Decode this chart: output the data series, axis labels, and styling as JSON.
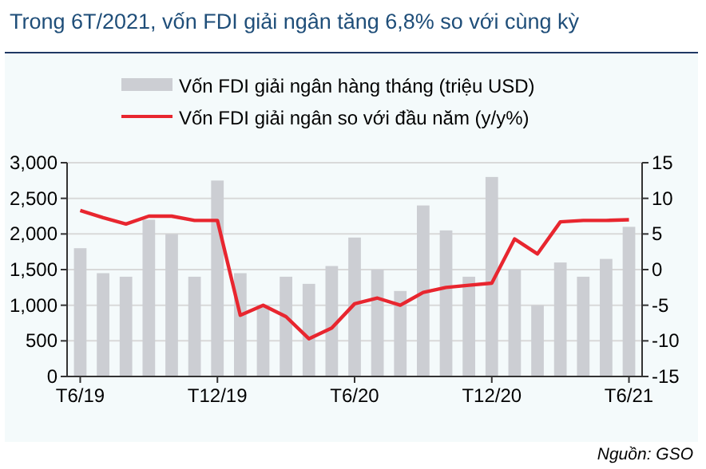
{
  "chart_data": {
    "type": "bar",
    "title": "Trong 6T/2021, vốn FDI giải ngân tăng 6,8% so với cùng kỳ",
    "categories": [
      "T6/19",
      null,
      null,
      null,
      null,
      null,
      "T12/19",
      null,
      null,
      null,
      null,
      null,
      "T6/20",
      null,
      null,
      null,
      null,
      null,
      "T12/20",
      null,
      null,
      null,
      null,
      null,
      "T6/21"
    ],
    "series": [
      {
        "name": "Vốn FDI giải ngân hàng tháng (triệu USD)",
        "color": "#ccced3",
        "values": [
          1800,
          1450,
          1400,
          2200,
          2000,
          1400,
          2750,
          1450,
          1000,
          1400,
          1300,
          1550,
          1950,
          1500,
          1200,
          2400,
          2050,
          1400,
          2800,
          1500,
          1000,
          1600,
          1400,
          1650,
          2100
        ]
      },
      {
        "name": "Vốn FDI giải ngân so với đầu năm (y/y%)",
        "type": "line",
        "axis": "y2",
        "color": "#e8262f",
        "values": [
          8.3,
          7.3,
          6.4,
          7.5,
          7.5,
          6.9,
          6.9,
          -6.4,
          -5.0,
          -6.6,
          -9.7,
          -8.2,
          -4.8,
          -4.0,
          -5.0,
          -3.2,
          -2.5,
          -2.2,
          -1.9,
          4.3,
          2.2,
          6.7,
          6.9,
          6.9,
          7.0
        ]
      }
    ],
    "ylim": [
      0,
      3000
    ],
    "yticks": [
      0,
      500,
      {
        "value": 1000,
        "label": "1,000"
      },
      {
        "value": 1500,
        "label": "1,500"
      },
      {
        "value": 2000,
        "label": "2,000"
      },
      {
        "value": 2500,
        "label": "2,500"
      },
      {
        "value": 3000,
        "label": "3,000"
      }
    ],
    "y2lim": [
      -15,
      15
    ],
    "y2ticks": [
      -15,
      -10,
      -5,
      0,
      5,
      10,
      15
    ],
    "grid": "y",
    "legend": "top",
    "marker": "none",
    "line_style": "solid",
    "annotations": [
      "Nguồn: GSO"
    ]
  }
}
